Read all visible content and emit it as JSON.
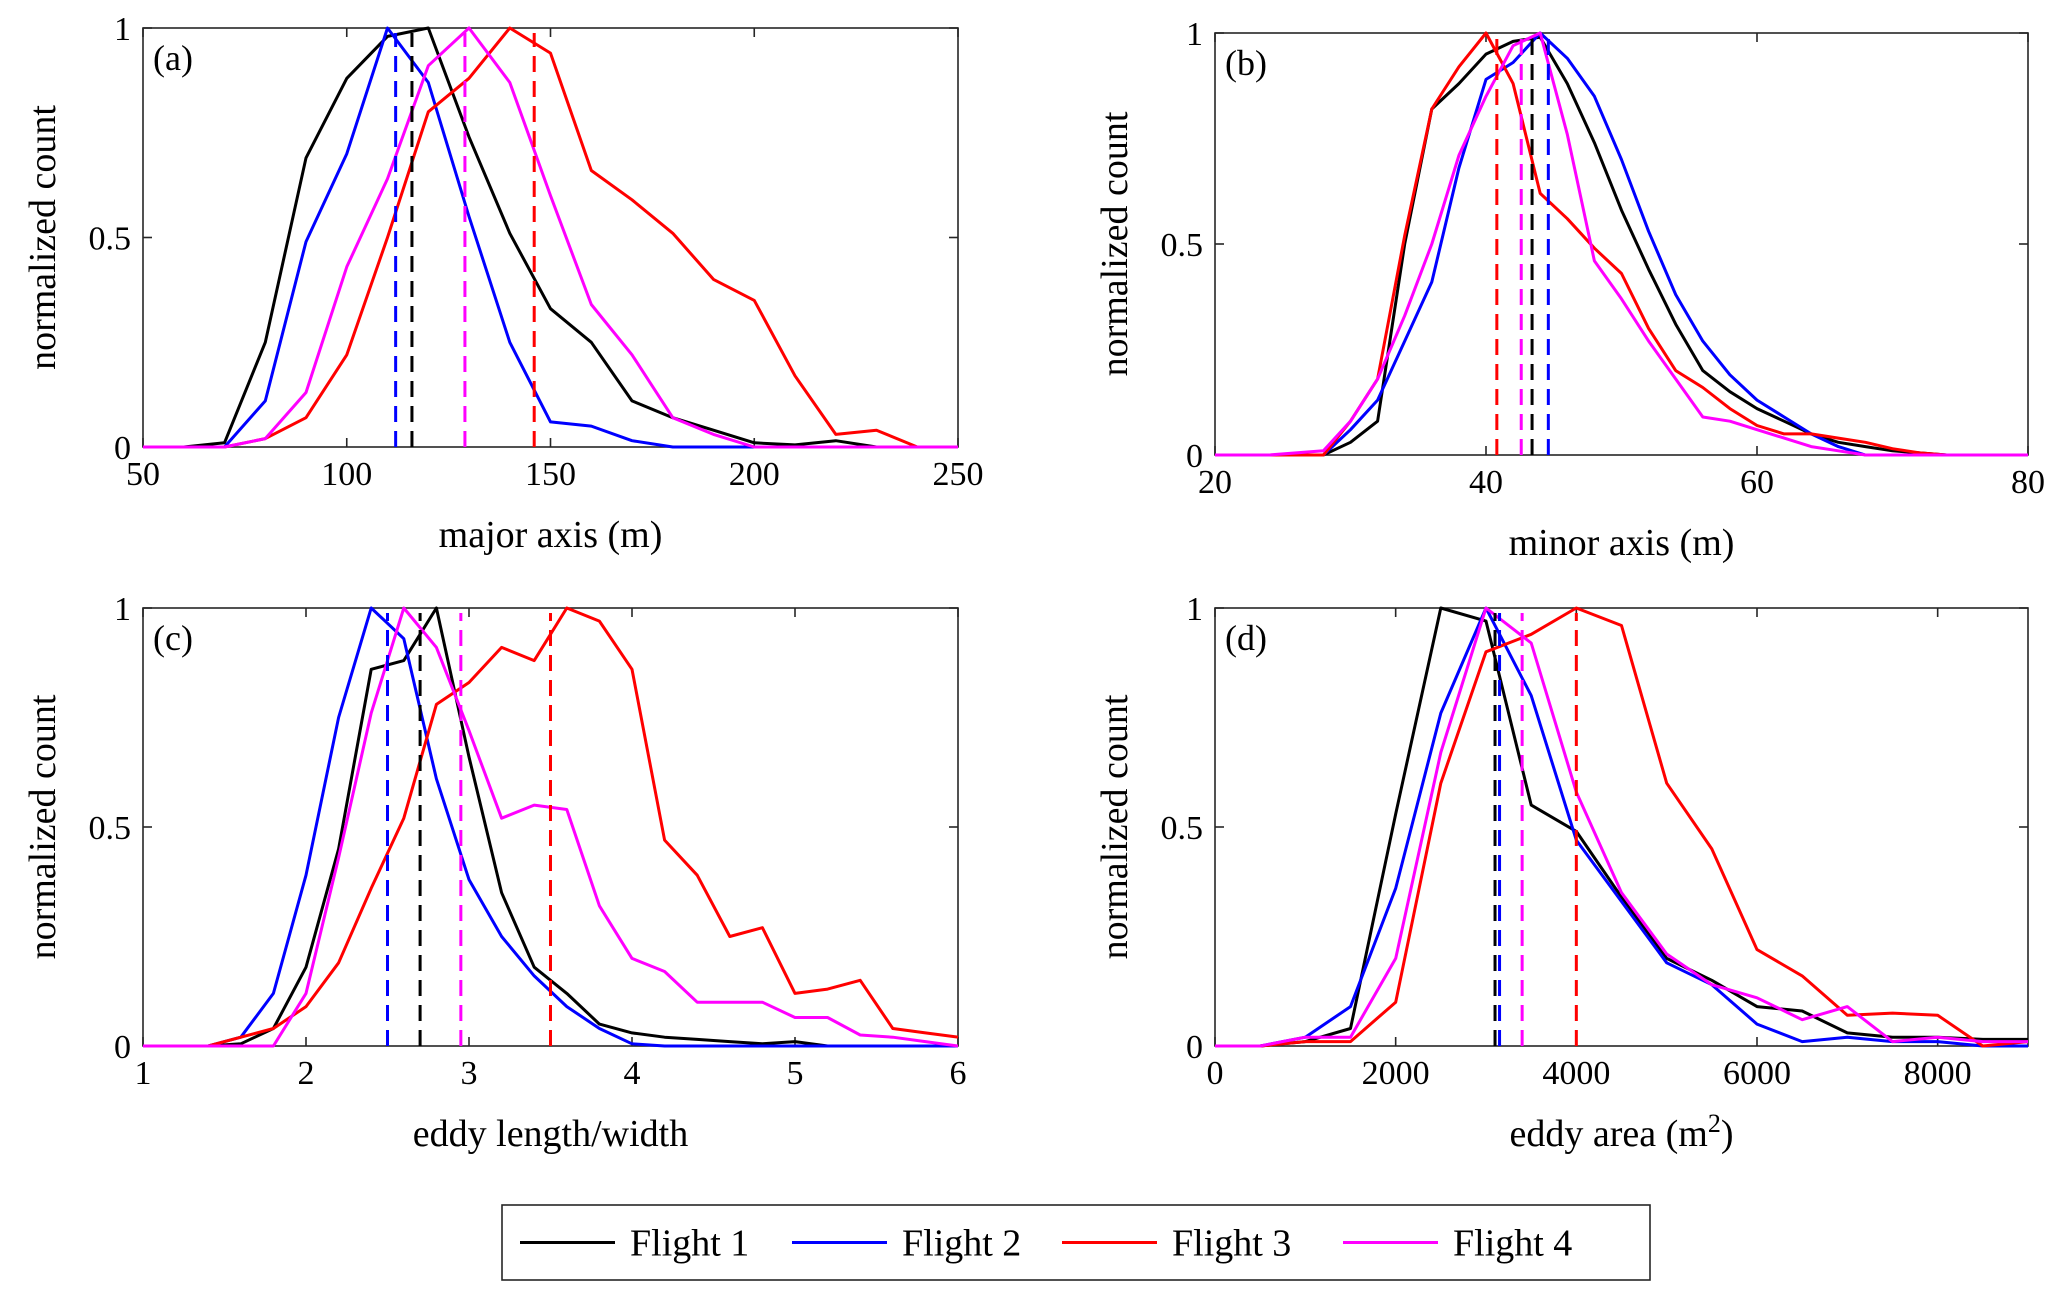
{
  "legend": [
    {
      "name": "Flight 1",
      "color": "#000000"
    },
    {
      "name": "Flight 2",
      "color": "#0000ff"
    },
    {
      "name": "Flight 3",
      "color": "#ff0000"
    },
    {
      "name": "Flight 4",
      "color": "#ff00ff"
    }
  ],
  "chart_data": [
    {
      "type": "line",
      "tag": "(a)",
      "xlabel": "major axis (m)",
      "ylabel": "normalized count",
      "xlim": [
        50,
        250
      ],
      "ylim": [
        0,
        1
      ],
      "xticks": [
        50,
        100,
        150,
        200,
        250
      ],
      "xtick_labels": [
        "50",
        "100",
        "150",
        "200",
        "250"
      ],
      "yticks": [
        0,
        0.5,
        1
      ],
      "ytick_labels": [
        "0",
        "0.5",
        "1"
      ],
      "series": [
        {
          "name": "Flight 1",
          "color": "#000000",
          "mean": 116,
          "x": [
            50,
            60,
            70,
            80,
            90,
            100,
            110,
            120,
            130,
            140,
            150,
            160,
            170,
            180,
            190,
            200,
            210,
            220,
            230,
            240,
            250
          ],
          "y": [
            0,
            0,
            0.01,
            0.25,
            0.69,
            0.88,
            0.98,
            1.0,
            0.74,
            0.51,
            0.33,
            0.25,
            0.11,
            0.07,
            0.04,
            0.01,
            0.005,
            0.015,
            0,
            0,
            0
          ]
        },
        {
          "name": "Flight 2",
          "color": "#0000ff",
          "mean": 112,
          "x": [
            50,
            60,
            70,
            80,
            90,
            100,
            110,
            120,
            130,
            140,
            150,
            160,
            170,
            180,
            190,
            200,
            210,
            220,
            230,
            240,
            250
          ],
          "y": [
            0,
            0,
            0,
            0.11,
            0.49,
            0.7,
            1.0,
            0.87,
            0.55,
            0.25,
            0.06,
            0.05,
            0.015,
            0,
            0,
            0,
            0,
            0,
            0,
            0,
            0
          ]
        },
        {
          "name": "Flight 3",
          "color": "#ff0000",
          "mean": 146,
          "x": [
            50,
            60,
            70,
            80,
            90,
            100,
            110,
            120,
            130,
            140,
            150,
            160,
            170,
            180,
            190,
            200,
            210,
            220,
            230,
            240,
            250
          ],
          "y": [
            0,
            0,
            0,
            0.02,
            0.07,
            0.22,
            0.5,
            0.8,
            0.88,
            1.0,
            0.94,
            0.66,
            0.59,
            0.51,
            0.4,
            0.35,
            0.17,
            0.03,
            0.04,
            0,
            0
          ]
        },
        {
          "name": "Flight 4",
          "color": "#ff00ff",
          "mean": 129,
          "x": [
            50,
            60,
            70,
            80,
            90,
            100,
            110,
            120,
            130,
            140,
            150,
            160,
            170,
            180,
            190,
            200,
            210,
            220,
            230,
            240,
            250
          ],
          "y": [
            0,
            0,
            0,
            0.02,
            0.13,
            0.43,
            0.64,
            0.91,
            1.0,
            0.87,
            0.6,
            0.34,
            0.22,
            0.07,
            0.03,
            0,
            0,
            0,
            0,
            0,
            0
          ]
        }
      ]
    },
    {
      "type": "line",
      "tag": "(b)",
      "xlabel": "minor axis (m)",
      "ylabel": "normalized count",
      "xlim": [
        20,
        80
      ],
      "ylim": [
        0,
        1
      ],
      "xticks": [
        20,
        40,
        60,
        80
      ],
      "xtick_labels": [
        "20",
        "40",
        "60",
        "80"
      ],
      "yticks": [
        0,
        0.5,
        1
      ],
      "ytick_labels": [
        "0",
        "0.5",
        "1"
      ],
      "series": [
        {
          "name": "Flight 1",
          "color": "#000000",
          "mean": 43.4,
          "x": [
            20,
            24,
            28,
            30,
            32,
            34,
            36,
            38,
            40,
            42,
            44,
            46,
            48,
            50,
            52,
            54,
            56,
            58,
            60,
            62,
            64,
            66,
            68,
            70,
            72,
            74,
            76,
            78,
            80
          ],
          "y": [
            0,
            0,
            0,
            0.03,
            0.08,
            0.5,
            0.82,
            0.88,
            0.95,
            0.98,
            0.99,
            0.88,
            0.74,
            0.58,
            0.44,
            0.31,
            0.2,
            0.15,
            0.11,
            0.08,
            0.05,
            0.03,
            0.02,
            0.01,
            0.005,
            0,
            0,
            0,
            0
          ]
        },
        {
          "name": "Flight 2",
          "color": "#0000ff",
          "mean": 44.6,
          "x": [
            20,
            24,
            28,
            30,
            32,
            34,
            36,
            38,
            40,
            42,
            44,
            46,
            48,
            50,
            52,
            54,
            56,
            58,
            60,
            62,
            64,
            66,
            68,
            70,
            72,
            74,
            76,
            78,
            80
          ],
          "y": [
            0,
            0,
            0,
            0.06,
            0.13,
            0.27,
            0.41,
            0.68,
            0.89,
            0.93,
            1.0,
            0.94,
            0.85,
            0.7,
            0.53,
            0.38,
            0.27,
            0.19,
            0.13,
            0.09,
            0.05,
            0.02,
            0,
            0,
            0,
            0,
            0,
            0,
            0
          ]
        },
        {
          "name": "Flight 3",
          "color": "#ff0000",
          "mean": 40.8,
          "x": [
            20,
            24,
            28,
            30,
            32,
            34,
            36,
            38,
            40,
            42,
            44,
            46,
            48,
            50,
            52,
            54,
            56,
            58,
            60,
            62,
            64,
            66,
            68,
            70,
            72,
            74,
            76,
            78,
            80
          ],
          "y": [
            0,
            0,
            0,
            0.08,
            0.18,
            0.52,
            0.82,
            0.92,
            1.0,
            0.88,
            0.62,
            0.56,
            0.49,
            0.43,
            0.3,
            0.2,
            0.16,
            0.11,
            0.07,
            0.05,
            0.05,
            0.04,
            0.03,
            0.015,
            0.005,
            0,
            0,
            0,
            0
          ]
        },
        {
          "name": "Flight 4",
          "color": "#ff00ff",
          "mean": 42.6,
          "x": [
            20,
            24,
            28,
            30,
            32,
            34,
            36,
            38,
            40,
            42,
            44,
            46,
            48,
            50,
            52,
            54,
            56,
            58,
            60,
            62,
            64,
            66,
            68,
            70,
            72,
            74,
            76,
            78,
            80
          ],
          "y": [
            0,
            0,
            0.01,
            0.08,
            0.18,
            0.33,
            0.5,
            0.71,
            0.85,
            0.97,
            1.0,
            0.76,
            0.46,
            0.37,
            0.27,
            0.18,
            0.09,
            0.08,
            0.06,
            0.04,
            0.02,
            0.01,
            0,
            0,
            0,
            0,
            0,
            0,
            0
          ]
        }
      ]
    },
    {
      "type": "line",
      "tag": "(c)",
      "xlabel": "eddy length/width",
      "ylabel": "normalized count",
      "xlim": [
        1,
        6
      ],
      "ylim": [
        0,
        1
      ],
      "xticks": [
        1,
        2,
        3,
        4,
        5,
        6
      ],
      "xtick_labels": [
        "1",
        "2",
        "3",
        "4",
        "5",
        "6"
      ],
      "yticks": [
        0,
        0.5,
        1
      ],
      "ytick_labels": [
        "0",
        "0.5",
        "1"
      ],
      "series": [
        {
          "name": "Flight 1",
          "color": "#000000",
          "mean": 2.7,
          "x": [
            1,
            1.2,
            1.4,
            1.6,
            1.8,
            2.0,
            2.2,
            2.4,
            2.6,
            2.8,
            3.0,
            3.2,
            3.4,
            3.6,
            3.8,
            4.0,
            4.2,
            4.4,
            4.6,
            4.8,
            5.0,
            5.2,
            5.4,
            5.6,
            5.8,
            6.0
          ],
          "y": [
            0,
            0,
            0,
            0.005,
            0.04,
            0.18,
            0.45,
            0.86,
            0.88,
            1.0,
            0.66,
            0.35,
            0.18,
            0.12,
            0.05,
            0.03,
            0.02,
            0.015,
            0.01,
            0.005,
            0.01,
            0,
            0,
            0,
            0,
            0
          ]
        },
        {
          "name": "Flight 2",
          "color": "#0000ff",
          "mean": 2.5,
          "x": [
            1,
            1.2,
            1.4,
            1.6,
            1.8,
            2.0,
            2.2,
            2.4,
            2.6,
            2.8,
            3.0,
            3.2,
            3.4,
            3.6,
            3.8,
            4.0,
            4.2,
            4.4,
            4.6,
            4.8,
            5.0,
            5.2,
            5.4,
            5.6,
            5.8,
            6.0
          ],
          "y": [
            0,
            0,
            0,
            0.02,
            0.12,
            0.39,
            0.75,
            1.0,
            0.93,
            0.61,
            0.38,
            0.25,
            0.16,
            0.09,
            0.04,
            0.005,
            0,
            0,
            0,
            0,
            0,
            0,
            0,
            0,
            0,
            0
          ]
        },
        {
          "name": "Flight 3",
          "color": "#ff0000",
          "mean": 3.5,
          "x": [
            1,
            1.2,
            1.4,
            1.6,
            1.8,
            2.0,
            2.2,
            2.4,
            2.6,
            2.8,
            3.0,
            3.2,
            3.4,
            3.6,
            3.8,
            4.0,
            4.2,
            4.4,
            4.6,
            4.8,
            5.0,
            5.2,
            5.4,
            5.6,
            5.8,
            6.0
          ],
          "y": [
            0,
            0,
            0,
            0.02,
            0.04,
            0.09,
            0.19,
            0.36,
            0.52,
            0.78,
            0.83,
            0.91,
            0.88,
            1.0,
            0.97,
            0.86,
            0.47,
            0.39,
            0.25,
            0.27,
            0.12,
            0.13,
            0.15,
            0.04,
            0.03,
            0.02
          ]
        },
        {
          "name": "Flight 4",
          "color": "#ff00ff",
          "mean": 2.95,
          "x": [
            1,
            1.2,
            1.4,
            1.6,
            1.8,
            2.0,
            2.2,
            2.4,
            2.6,
            2.8,
            3.0,
            3.2,
            3.4,
            3.6,
            3.8,
            4.0,
            4.2,
            4.4,
            4.6,
            4.8,
            5.0,
            5.2,
            5.4,
            5.6,
            5.8,
            6.0
          ],
          "y": [
            0,
            0,
            0,
            0,
            0,
            0.12,
            0.43,
            0.76,
            1.0,
            0.91,
            0.72,
            0.52,
            0.55,
            0.54,
            0.32,
            0.2,
            0.17,
            0.1,
            0.1,
            0.1,
            0.065,
            0.065,
            0.025,
            0.02,
            0.01,
            0
          ]
        }
      ]
    },
    {
      "type": "line",
      "tag": "(d)",
      "xlabel": "eddy area (m²)",
      "xlabel_base": "eddy area (m",
      "xlabel_sup": "2",
      "xlabel_end": ")",
      "ylabel": "normalized count",
      "xlim": [
        0,
        9000
      ],
      "ylim": [
        0,
        1
      ],
      "xticks": [
        0,
        2000,
        4000,
        6000,
        8000
      ],
      "xtick_labels": [
        "0",
        "2000",
        "4000",
        "6000",
        "8000"
      ],
      "yticks": [
        0,
        0.5,
        1
      ],
      "ytick_labels": [
        "0",
        "0.5",
        "1"
      ],
      "series": [
        {
          "name": "Flight 1",
          "color": "#000000",
          "mean": 3100,
          "x": [
            0,
            500,
            1000,
            1500,
            2000,
            2500,
            3000,
            3500,
            4000,
            4500,
            5000,
            5500,
            6000,
            6500,
            7000,
            7500,
            8000,
            8500,
            9000
          ],
          "y": [
            0,
            0,
            0.01,
            0.04,
            0.53,
            1.0,
            0.97,
            0.55,
            0.49,
            0.34,
            0.2,
            0.15,
            0.09,
            0.08,
            0.03,
            0.02,
            0.02,
            0.015,
            0.015
          ]
        },
        {
          "name": "Flight 2",
          "color": "#0000ff",
          "mean": 3150,
          "x": [
            0,
            500,
            1000,
            1500,
            2000,
            2500,
            3000,
            3500,
            4000,
            4500,
            5000,
            5500,
            6000,
            6500,
            7000,
            7500,
            8000,
            8500,
            9000
          ],
          "y": [
            0,
            0,
            0.02,
            0.09,
            0.36,
            0.76,
            1.0,
            0.8,
            0.47,
            0.33,
            0.19,
            0.14,
            0.05,
            0.01,
            0.02,
            0.01,
            0.01,
            0,
            0
          ]
        },
        {
          "name": "Flight 3",
          "color": "#ff0000",
          "mean": 4000,
          "x": [
            0,
            500,
            1000,
            1500,
            2000,
            2500,
            3000,
            3500,
            4000,
            4500,
            5000,
            5500,
            6000,
            6500,
            7000,
            7500,
            8000,
            8500,
            9000
          ],
          "y": [
            0,
            0,
            0.01,
            0.01,
            0.1,
            0.6,
            0.9,
            0.94,
            1.0,
            0.96,
            0.6,
            0.45,
            0.22,
            0.16,
            0.07,
            0.075,
            0.07,
            0,
            0.01
          ]
        },
        {
          "name": "Flight 4",
          "color": "#ff00ff",
          "mean": 3400,
          "x": [
            0,
            500,
            1000,
            1500,
            2000,
            2500,
            3000,
            3500,
            4000,
            4500,
            5000,
            5500,
            6000,
            6500,
            7000,
            7500,
            8000,
            8500,
            9000
          ],
          "y": [
            0,
            0,
            0.02,
            0.02,
            0.2,
            0.67,
            1.0,
            0.92,
            0.58,
            0.35,
            0.21,
            0.14,
            0.11,
            0.06,
            0.09,
            0.01,
            0.02,
            0.01,
            0.01
          ]
        }
      ]
    }
  ]
}
